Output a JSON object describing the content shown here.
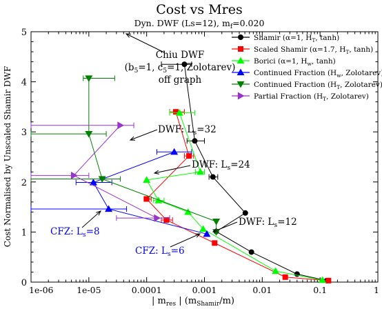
{
  "chart_data": {
    "type": "scatter",
    "title": "Cost vs Mres",
    "subtitle": "Dyn. DWF (Ls=12), m",
    "subtitle_sub": "f",
    "subtitle_tail": "=0.020",
    "xlabel": "| m",
    "xlabel_sub": "res",
    "xlabel_mid": " | (m",
    "xlabel_sub2": "Shamir",
    "xlabel_tail": "/m)",
    "ylabel": "Cost Normalised by Unscaled Shamir DWF",
    "x_scale": "log",
    "xlim": [
      1e-06,
      1
    ],
    "ylim": [
      0,
      5
    ],
    "x_ticks": [
      {
        "v": 1e-06,
        "label": "1e-06"
      },
      {
        "v": 1e-05,
        "label": "1e-05"
      },
      {
        "v": 0.0001,
        "label": "0.0001"
      },
      {
        "v": 0.001,
        "label": "0.001"
      },
      {
        "v": 0.01,
        "label": "0.01"
      },
      {
        "v": 0.1,
        "label": "0.1"
      },
      {
        "v": 1,
        "label": "1"
      }
    ],
    "y_ticks": [
      {
        "v": 0,
        "label": "0"
      },
      {
        "v": 1,
        "label": "1"
      },
      {
        "v": 2,
        "label": "2"
      },
      {
        "v": 3,
        "label": "3"
      },
      {
        "v": 4,
        "label": "4"
      },
      {
        "v": 5,
        "label": "5"
      }
    ],
    "legend_position": "top-right",
    "series": [
      {
        "name": "Shamir (α=1, H",
        "name_sub": "T",
        "name_tail": ", tanh)",
        "color": "#000000",
        "marker": "circle",
        "points": [
          {
            "x": 0.00045,
            "y": 4.35,
            "xerr": [
              0.00018,
              0.0006
            ]
          },
          {
            "x": 0.00068,
            "y": 2.82,
            "xerr": [
              0.0005,
              0.001
            ]
          },
          {
            "x": 0.0014,
            "y": 2.1,
            "xerr": [
              0.0012,
              0.0017
            ]
          },
          {
            "x": 0.0051,
            "y": 1.38
          },
          {
            "x": 0.0016,
            "y": 1.01
          },
          {
            "x": 0.0065,
            "y": 0.6
          },
          {
            "x": 0.04,
            "y": 0.16
          },
          {
            "x": 0.13,
            "y": 0.03
          }
        ]
      },
      {
        "name": "Scaled Shamir (α=1.7, H",
        "name_sub": "T",
        "name_tail": ", tanh)",
        "color": "#ff0000",
        "marker": "square",
        "points": [
          {
            "x": 0.00032,
            "y": 3.4,
            "xerr": [
              0.00025,
              0.00045
            ]
          },
          {
            "x": 0.00054,
            "y": 2.52,
            "xerr": [
              0.00045,
              0.00065
            ]
          },
          {
            "x": 0.0001,
            "y": 1.66,
            "xerr": [
              9e-05,
              0.00012
            ]
          },
          {
            "x": 0.00022,
            "y": 1.24,
            "xerr": [
              0.00018,
              0.00028
            ]
          },
          {
            "x": 0.0015,
            "y": 0.78
          },
          {
            "x": 0.025,
            "y": 0.1
          },
          {
            "x": 0.14,
            "y": 0.03
          }
        ]
      },
      {
        "name": "Borici (α=1, H",
        "name_sub": "w",
        "name_tail": ", tanh)",
        "color": "#00ff00",
        "marker": "triangle-up",
        "points": [
          {
            "x": 0.00037,
            "y": 3.38,
            "xerr": [
              0.00025,
              0.00068
            ]
          },
          {
            "x": 0.00085,
            "y": 2.2,
            "xerr": [
              0.0007,
              0.001
            ]
          },
          {
            "x": 0.0001,
            "y": 2.04
          },
          {
            "x": 0.00016,
            "y": 1.63,
            "xerr": [
              0.00013,
              0.0002
            ]
          },
          {
            "x": 0.00052,
            "y": 1.4
          },
          {
            "x": 0.00095,
            "y": 1.06
          },
          {
            "x": 0.017,
            "y": 0.22
          },
          {
            "x": 0.11,
            "y": 0.04
          }
        ]
      },
      {
        "name": "Continued Fraction (H",
        "name_sub": "w",
        "name_tail": ", Zolotarev)",
        "color": "#0000ff",
        "marker": "triangle-up",
        "points": [
          {
            "x": 0.0003,
            "y": 2.6,
            "xerr": [
              0.00015,
              0.0006
            ]
          },
          {
            "x": 1.2e-05,
            "y": 1.99,
            "xerr": [
              6e-06,
              2.5e-05
            ]
          },
          {
            "x": 2.2e-05,
            "y": 1.46,
            "xerr": [
              1e-06,
              4.5e-05
            ]
          },
          {
            "x": 0.0011,
            "y": 0.96
          }
        ]
      },
      {
        "name": "Continued Fraction (H",
        "name_sub": "T",
        "name_tail": ", Zolotarev)",
        "color": "#008000",
        "marker": "triangle-down",
        "points": [
          {
            "x": 1e-05,
            "y": 4.07,
            "xerr": [
              8e-06,
              2.8e-05
            ]
          },
          {
            "x": 1e-05,
            "y": 2.96,
            "xerr": [
              1e-06,
              2e-05
            ]
          },
          {
            "x": 1.7e-05,
            "y": 2.06,
            "xerr": [
              1e-06,
              3.5e-05
            ]
          },
          {
            "x": 0.0016,
            "y": 1.21
          },
          {
            "x": 0.0016,
            "y": 1.0
          }
        ]
      },
      {
        "name": "Partial Fraction (H",
        "name_sub": "T",
        "name_tail": ", Zolotarev)",
        "color": "#9933cc",
        "marker": "triangle-right",
        "points": [
          {
            "x": 3.5e-05,
            "y": 3.13,
            "xerr": [
              1e-06,
              6e-05
            ]
          },
          {
            "x": 5.5e-06,
            "y": 2.13,
            "xerr": [
              1e-06,
              1e-05
            ]
          },
          {
            "x": 0.00015,
            "y": 1.28,
            "xerr": [
              3e-05,
              0.00025
            ]
          }
        ]
      }
    ],
    "annotations": [
      {
        "id": "chiu",
        "lines": [
          "Chiu DWF",
          "(b",
          "=1, c",
          "=1, Zolotarev)",
          "off graph"
        ],
        "subs": [
          "5",
          "5"
        ]
      },
      {
        "id": "dwf32",
        "text": "DWF: L",
        "sub": "s",
        "tail": "=32"
      },
      {
        "id": "dwf24",
        "text": "DWF: L",
        "sub": "s",
        "tail": "=24"
      },
      {
        "id": "dwf12",
        "text": "DWF: L",
        "sub": "s",
        "tail": "=12"
      },
      {
        "id": "cfz8",
        "text": "CFZ: L",
        "sub": "s",
        "tail": "=8"
      },
      {
        "id": "cfz6",
        "text": "CFZ: L",
        "sub": "s",
        "tail": "=6"
      }
    ]
  }
}
